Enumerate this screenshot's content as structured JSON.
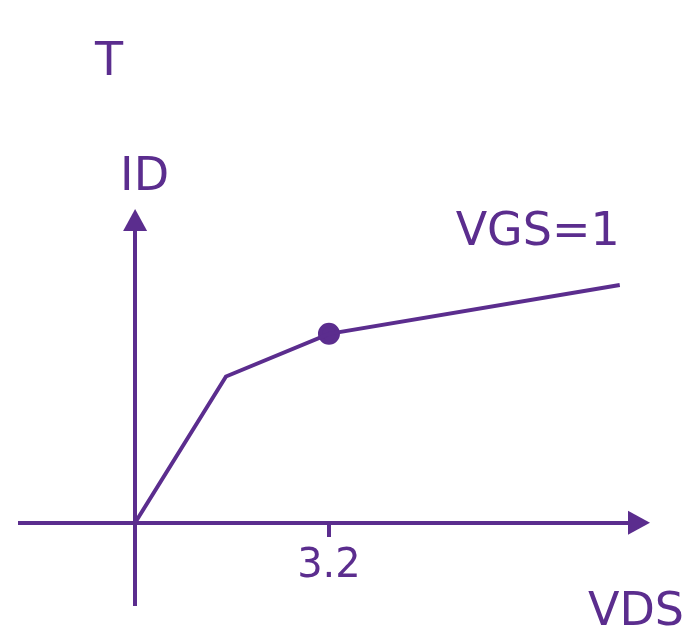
{
  "chart_data": {
    "type": "line",
    "title": "T",
    "y_label": "ID",
    "x_label": "VDS",
    "annotation": "VGS=1",
    "x": [
      0,
      1.5,
      3.2,
      8
    ],
    "series": [
      {
        "values": [
          0,
          2.4,
          3.1,
          3.9
        ],
        "color": "#5b2d8e",
        "marker": "none"
      },
      {
        "type": "scatter",
        "x": [
          3.2
        ],
        "values": [
          3.1
        ],
        "color": "#5b2d8e",
        "marker": "circle"
      }
    ],
    "xlim": [
      -1.9,
      8.4
    ],
    "ylim": [
      -1.35,
      5.05
    ],
    "xticks": [
      3.2
    ],
    "tick_labels": "x",
    "grid": false
  }
}
